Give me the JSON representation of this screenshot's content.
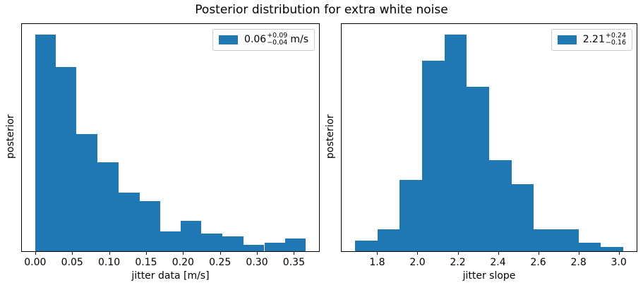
{
  "figure_title": "Posterior distribution for extra white noise",
  "bar_color": "#1f77b4",
  "legend_edge_color": "#cccccc",
  "chart_data": [
    {
      "type": "bar",
      "subtype": "histogram",
      "xlabel": "jitter data [m/s]",
      "ylabel": "posterior",
      "legend_position": "upper right",
      "legend": {
        "main": "0.06",
        "plus": "+0.09",
        "minus": "−0.04",
        "unit": "m/s"
      },
      "bin_edges": [
        0.0,
        0.028,
        0.056,
        0.084,
        0.113,
        0.141,
        0.169,
        0.197,
        0.225,
        0.253,
        0.282,
        0.31,
        0.338,
        0.366
      ],
      "heights": [
        1.0,
        0.85,
        0.54,
        0.41,
        0.27,
        0.23,
        0.09,
        0.14,
        0.08,
        0.07,
        0.03,
        0.04,
        0.06
      ],
      "heights_note": "relative posterior density, max bin = 1",
      "xlim": [
        -0.018,
        0.384
      ],
      "ylim": [
        0,
        1.05
      ],
      "xticks": [
        0.0,
        0.05,
        0.1,
        0.15,
        0.2,
        0.25,
        0.3,
        0.35
      ],
      "xtick_labels": [
        "0.00",
        "0.05",
        "0.10",
        "0.15",
        "0.20",
        "0.25",
        "0.30",
        "0.35"
      ],
      "yticks": [],
      "grid": false
    },
    {
      "type": "bar",
      "subtype": "histogram",
      "xlabel": "jitter slope",
      "ylabel": "posterior",
      "legend_position": "upper right",
      "legend": {
        "main": "2.21",
        "plus": "+0.24",
        "minus": "−0.16",
        "unit": ""
      },
      "bin_edges": [
        1.69,
        1.801,
        1.912,
        2.023,
        2.134,
        2.245,
        2.356,
        2.467,
        2.578,
        2.689,
        2.8,
        2.911,
        3.022
      ],
      "heights": [
        0.05,
        0.1,
        0.33,
        0.88,
        1.0,
        0.76,
        0.42,
        0.31,
        0.1,
        0.1,
        0.04,
        0.02
      ],
      "heights_note": "relative posterior density, max bin = 1",
      "xlim": [
        1.623,
        3.089
      ],
      "ylim": [
        0,
        1.05
      ],
      "xticks": [
        1.8,
        2.0,
        2.2,
        2.4,
        2.6,
        2.8,
        3.0
      ],
      "xtick_labels": [
        "1.8",
        "2.0",
        "2.2",
        "2.4",
        "2.6",
        "2.8",
        "3.0"
      ],
      "yticks": [],
      "grid": false
    }
  ]
}
